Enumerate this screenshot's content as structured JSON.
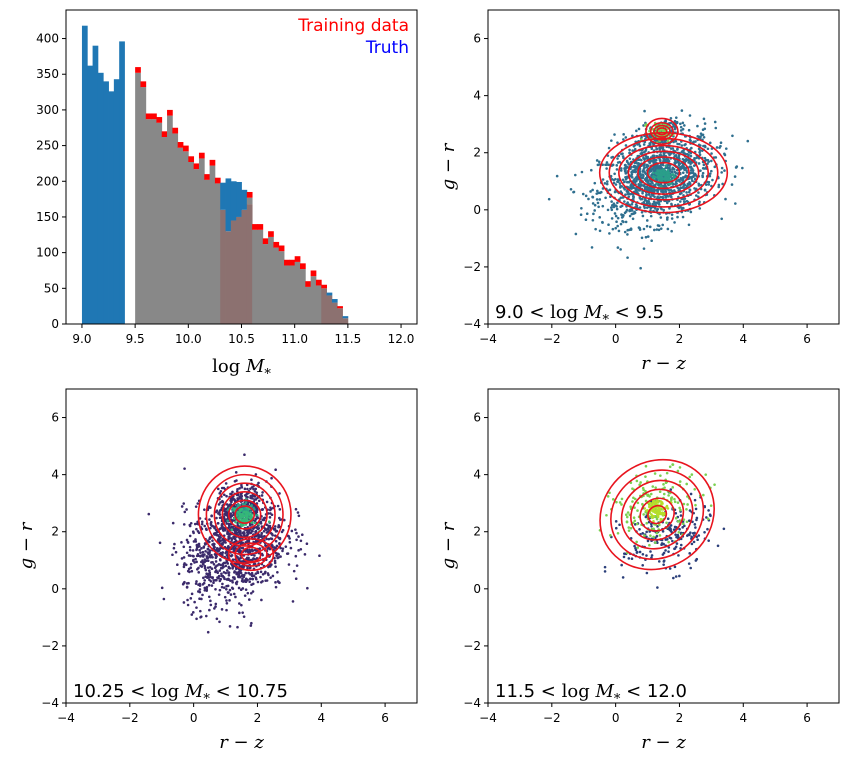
{
  "colors": {
    "training": "#ff0000",
    "truth_text": "#0000ff",
    "truth_bar": "#1f77b4",
    "overlap_gray": "#888888",
    "overlap_brown": "#8c7170",
    "contour": "#e8141e"
  },
  "chart_data": [
    {
      "type": "bar",
      "panel": "top-left",
      "xlabel": "log M*",
      "ylabel": "",
      "xlim": [
        8.85,
        12.15
      ],
      "ylim": [
        0,
        440
      ],
      "xticks": [
        "9.0",
        "9.5",
        "10.0",
        "10.5",
        "11.0",
        "11.5",
        "12.0"
      ],
      "yticks": [
        "0",
        "50",
        "100",
        "150",
        "200",
        "250",
        "300",
        "350",
        "400"
      ],
      "bin_start": 9.0,
      "bin_width": 0.05,
      "series": [
        {
          "name": "Training data",
          "values": [
            0,
            0,
            0,
            0,
            0,
            0,
            0,
            0,
            0,
            0,
            360,
            340,
            295,
            295,
            290,
            270,
            300,
            275,
            255,
            250,
            235,
            225,
            240,
            210,
            230,
            205,
            160,
            130,
            145,
            150,
            160,
            185,
            140,
            140,
            120,
            130,
            115,
            110,
            90,
            90,
            95,
            85,
            60,
            75,
            62,
            55,
            40,
            30,
            25,
            8
          ]
        },
        {
          "name": "Truth",
          "values": [
            418,
            362,
            390,
            352,
            340,
            326,
            343,
            396,
            0,
            0,
            0,
            0,
            0,
            0,
            0,
            0,
            0,
            0,
            0,
            0,
            0,
            0,
            0,
            0,
            0,
            0,
            198,
            204,
            200,
            199,
            188,
            168,
            0,
            0,
            0,
            0,
            0,
            0,
            0,
            0,
            0,
            0,
            0,
            0,
            0,
            50,
            44,
            35,
            22,
            11
          ]
        }
      ],
      "legend": [
        {
          "label": "Training data",
          "color": "#ff0000"
        },
        {
          "label": "Truth",
          "color": "#0000ff"
        }
      ],
      "legend_position": "top-right"
    },
    {
      "type": "scatter",
      "panel": "top-right",
      "xlabel": "r − z",
      "ylabel": "g − r",
      "xlim": [
        -4,
        7
      ],
      "ylim": [
        -4,
        7
      ],
      "xticks": [
        "−4",
        "−2",
        "0",
        "2",
        "4",
        "6"
      ],
      "yticks": [
        "−4",
        "−2",
        "0",
        "2",
        "4",
        "6"
      ],
      "annotation": "9.0 < log M* < 9.5",
      "point_color": "#2f6f8f",
      "clusters": [
        {
          "cx": 1.3,
          "cy": 1.1,
          "sx": 0.9,
          "sy": 0.75,
          "n": 1400
        },
        {
          "cx": 1.4,
          "cy": 2.7,
          "sx": 0.25,
          "sy": 0.2,
          "n": 160
        }
      ],
      "contour_centers": [
        {
          "cx": 1.5,
          "cy": 1.3,
          "rx": [
            0.5,
            0.8,
            1.1,
            1.4,
            1.7,
            2.0
          ],
          "ry": [
            0.35,
            0.55,
            0.75,
            0.95,
            1.2,
            1.4
          ]
        },
        {
          "cx": 1.45,
          "cy": 2.75,
          "rx": [
            0.15,
            0.25,
            0.35,
            0.5
          ],
          "ry": [
            0.12,
            0.2,
            0.3,
            0.45
          ]
        }
      ],
      "hotspots": [
        {
          "x": 1.4,
          "y": 2.7,
          "color": "#7ad151"
        },
        {
          "x": 1.5,
          "y": 1.2,
          "color": "#2a9e8a"
        }
      ]
    },
    {
      "type": "scatter",
      "panel": "bottom-left",
      "xlabel": "r − z",
      "ylabel": "g − r",
      "xlim": [
        -4,
        7
      ],
      "ylim": [
        -4,
        7
      ],
      "xticks": [
        "−4",
        "−2",
        "0",
        "2",
        "4",
        "6"
      ],
      "yticks": [
        "−4",
        "−2",
        "0",
        "2",
        "4",
        "6"
      ],
      "annotation": "10.25 < log M* < 10.75",
      "point_color": "#3b2a6b",
      "clusters": [
        {
          "cx": 1.3,
          "cy": 1.4,
          "sx": 0.8,
          "sy": 0.9,
          "n": 1100
        },
        {
          "cx": 1.5,
          "cy": 2.8,
          "sx": 0.4,
          "sy": 0.4,
          "n": 300
        }
      ],
      "contour_centers": [
        {
          "cx": 1.6,
          "cy": 2.6,
          "rx": [
            0.3,
            0.5,
            0.7,
            0.95,
            1.2,
            1.45
          ],
          "ry": [
            0.3,
            0.5,
            0.8,
            1.1,
            1.4,
            1.7
          ]
        },
        {
          "cx": 1.8,
          "cy": 1.2,
          "rx": [
            0.3,
            0.5,
            0.7
          ],
          "ry": [
            0.25,
            0.4,
            0.55
          ]
        }
      ],
      "hotspots": [
        {
          "x": 1.5,
          "y": 2.7,
          "color": "#2a9e8a"
        },
        {
          "x": 1.6,
          "y": 2.5,
          "color": "#35b779"
        }
      ]
    },
    {
      "type": "scatter",
      "panel": "bottom-right",
      "xlabel": "r − z",
      "ylabel": "g − r",
      "xlim": [
        -4,
        7
      ],
      "ylim": [
        -4,
        7
      ],
      "xticks": [
        "−4",
        "−2",
        "0",
        "2",
        "4",
        "6"
      ],
      "yticks": [
        "−4",
        "−2",
        "0",
        "2",
        "4",
        "6"
      ],
      "annotation": "11.5 < log M* < 12.0",
      "point_color": "#2b3f7a",
      "clusters": [
        {
          "cx": 1.6,
          "cy": 1.8,
          "sx": 0.7,
          "sy": 0.6,
          "n": 220
        },
        {
          "cx": 1.3,
          "cy": 2.9,
          "sx": 0.7,
          "sy": 0.6,
          "n": 180
        }
      ],
      "cluster_colors": [
        "#2b3f7a",
        "#7ad151"
      ],
      "contour_centers": [
        {
          "cx": 1.3,
          "cy": 2.6,
          "rx": [
            0.3,
            0.55,
            0.85,
            1.15,
            1.5,
            1.85
          ],
          "ry": [
            0.3,
            0.55,
            0.85,
            1.15,
            1.5,
            1.85
          ],
          "tilt": -35
        }
      ],
      "hotspots": [
        {
          "x": 1.3,
          "y": 2.8,
          "color": "#b5de2b"
        }
      ]
    }
  ]
}
